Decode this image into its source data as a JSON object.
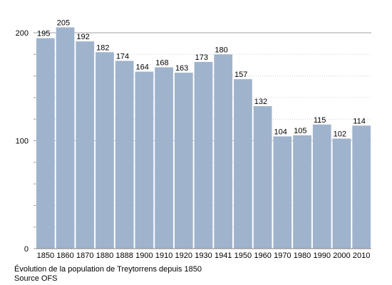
{
  "chart_data": {
    "type": "bar",
    "categories": [
      "1850",
      "1860",
      "1870",
      "1880",
      "1888",
      "1900",
      "1910",
      "1920",
      "1930",
      "1941",
      "1950",
      "1960",
      "1970",
      "1980",
      "1990",
      "2000",
      "2010"
    ],
    "values": [
      195,
      205,
      192,
      182,
      174,
      164,
      168,
      163,
      173,
      180,
      157,
      132,
      104,
      105,
      115,
      102,
      114
    ],
    "ylim": [
      0,
      200
    ],
    "yticks": [
      "0",
      "100",
      "200"
    ],
    "grid": true,
    "bar_color": "#9fb3cc",
    "caption_line1": "Évolution de la population de Treytorrens depuis 1850",
    "caption_line2": "Source OFS"
  }
}
